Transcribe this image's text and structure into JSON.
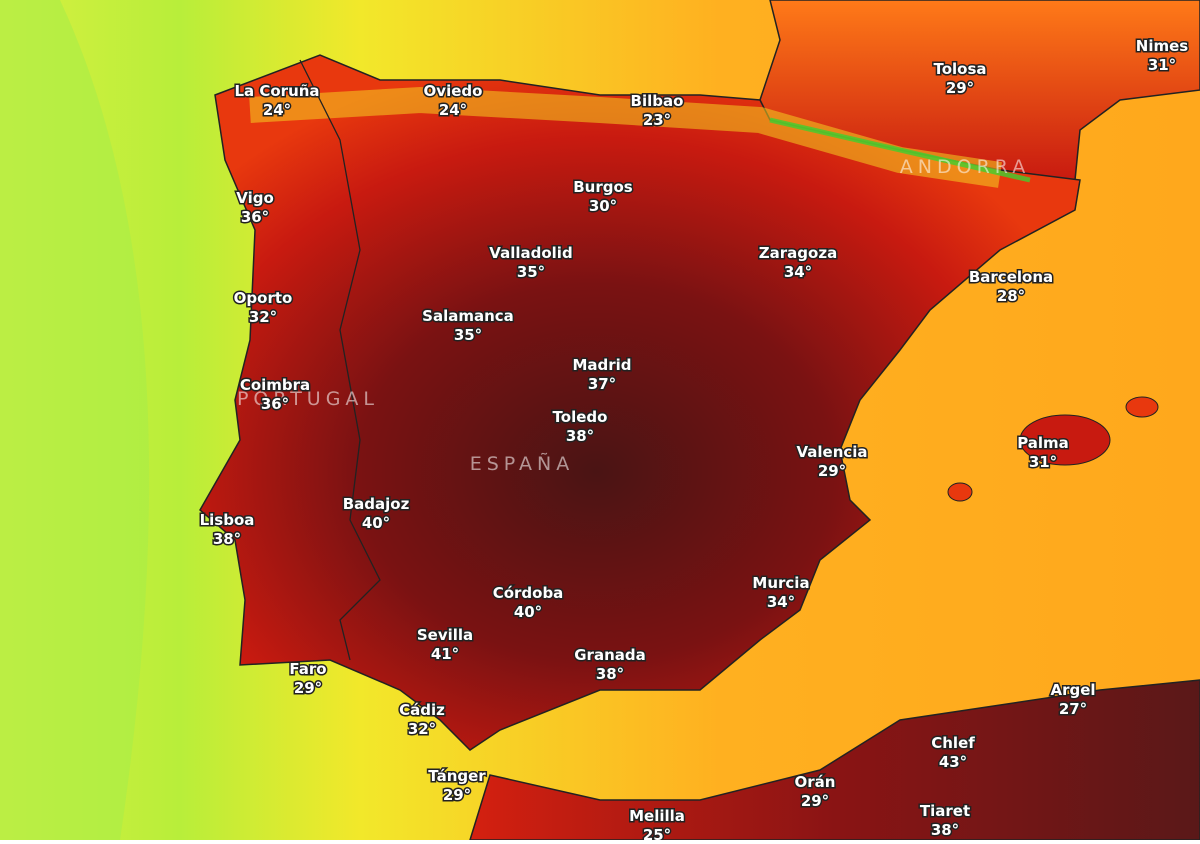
{
  "map": {
    "regions": [
      "PORTUGAL",
      "ESPAÑA",
      "ANDORRA"
    ],
    "cities": [
      {
        "name": "La Coruña",
        "temp": "24°"
      },
      {
        "name": "Oviedo",
        "temp": "24°"
      },
      {
        "name": "Bilbao",
        "temp": "23°"
      },
      {
        "name": "Tolosa",
        "temp": "29°"
      },
      {
        "name": "Nimes",
        "temp": "31°"
      },
      {
        "name": "Vigo",
        "temp": "36°"
      },
      {
        "name": "Burgos",
        "temp": "30°"
      },
      {
        "name": "Valladolid",
        "temp": "35°"
      },
      {
        "name": "Zaragoza",
        "temp": "34°"
      },
      {
        "name": "Barcelona",
        "temp": "28°"
      },
      {
        "name": "Oporto",
        "temp": "32°"
      },
      {
        "name": "Salamanca",
        "temp": "35°"
      },
      {
        "name": "Madrid",
        "temp": "37°"
      },
      {
        "name": "Coimbra",
        "temp": "36°"
      },
      {
        "name": "Toledo",
        "temp": "38°"
      },
      {
        "name": "Valencia",
        "temp": "29°"
      },
      {
        "name": "Palma",
        "temp": "31°"
      },
      {
        "name": "Badajoz",
        "temp": "40°"
      },
      {
        "name": "Lisboa",
        "temp": "38°"
      },
      {
        "name": "Murcia",
        "temp": "34°"
      },
      {
        "name": "Córdoba",
        "temp": "40°"
      },
      {
        "name": "Sevilla",
        "temp": "41°"
      },
      {
        "name": "Granada",
        "temp": "38°"
      },
      {
        "name": "Faro",
        "temp": "29°"
      },
      {
        "name": "Argel",
        "temp": "27°"
      },
      {
        "name": "Cádiz",
        "temp": "32°"
      },
      {
        "name": "Chlef",
        "temp": "43°"
      },
      {
        "name": "Tánger",
        "temp": "29°"
      },
      {
        "name": "Orán",
        "temp": "29°"
      },
      {
        "name": "Melilla",
        "temp": "25°"
      },
      {
        "name": "Tiaret",
        "temp": "38°"
      }
    ]
  }
}
